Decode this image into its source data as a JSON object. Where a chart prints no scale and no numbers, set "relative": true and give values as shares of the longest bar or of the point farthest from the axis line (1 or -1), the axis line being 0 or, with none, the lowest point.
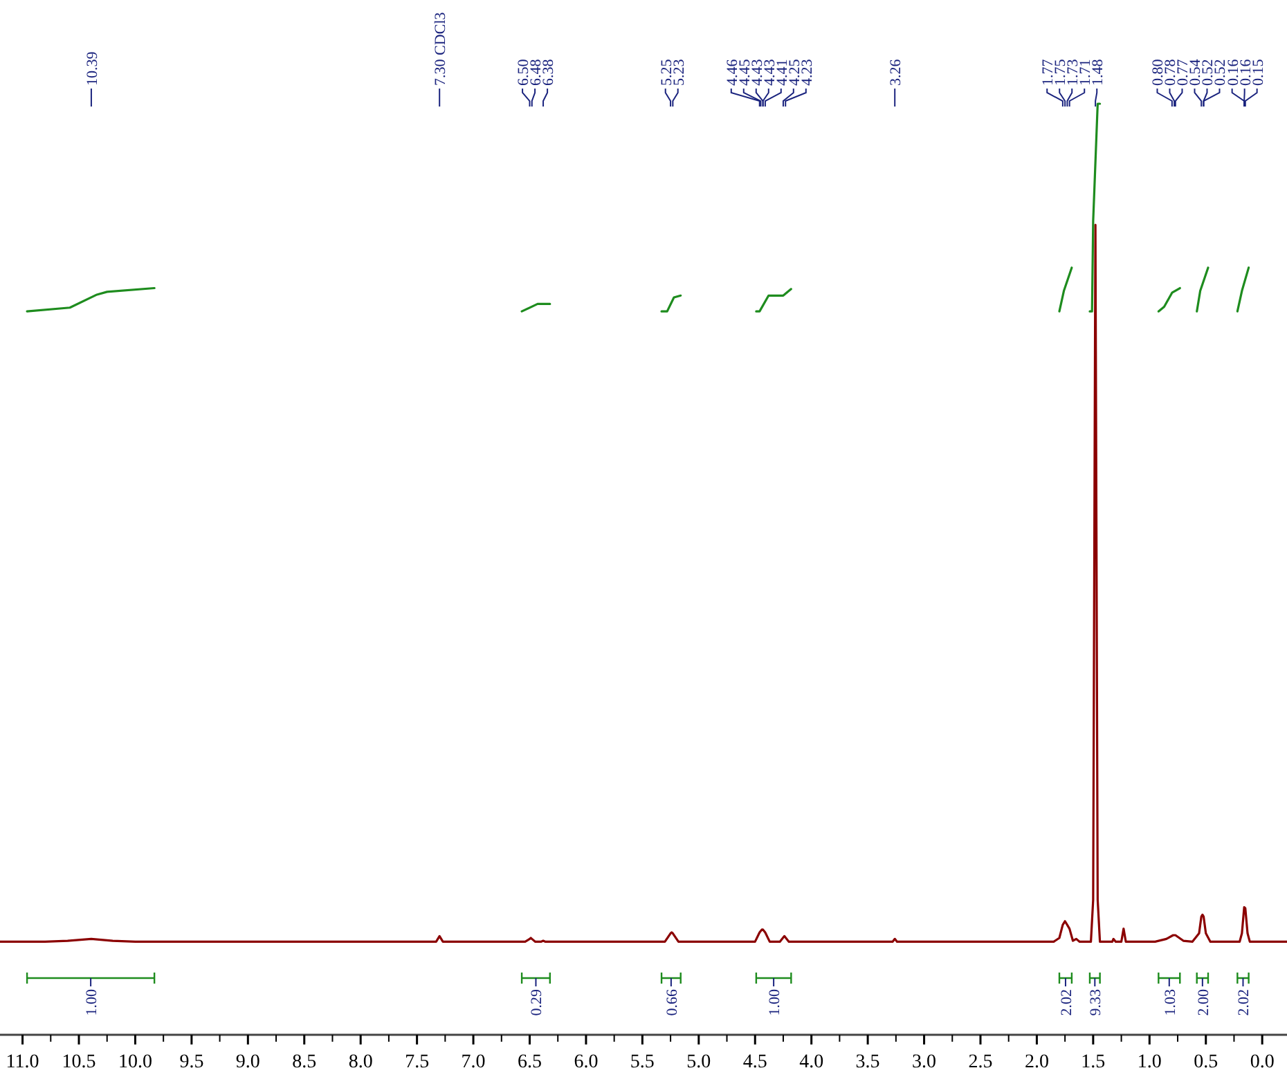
{
  "chart_data": {
    "type": "line",
    "relative": true,
    "xlim": [
      11.2,
      -0.22
    ],
    "xticks": [
      {
        "value": 11,
        "label": "11.0"
      },
      10.5,
      {
        "value": 10,
        "label": "10.0"
      },
      9.5,
      {
        "value": 9,
        "label": "9.0"
      },
      8.5,
      {
        "value": 8,
        "label": "8.0"
      },
      7.5,
      {
        "value": 7,
        "label": "7.0"
      },
      6.5,
      {
        "value": 6,
        "label": "6.0"
      },
      5.5,
      {
        "value": 5,
        "label": "5.0"
      },
      4.5,
      {
        "value": 4,
        "label": "4.0"
      },
      3.5,
      {
        "value": 3,
        "label": "3.0"
      },
      2.5,
      {
        "value": 2,
        "label": "2.0"
      },
      1.5,
      {
        "value": 1,
        "label": "1.0"
      },
      0.5,
      {
        "value": 0,
        "label": "0.0"
      }
    ],
    "series": [
      {
        "color": "#8b0000",
        "x": [
          11.2,
          10.8,
          10.6,
          10.39,
          10.2,
          10.0,
          7.33,
          7.3,
          7.27,
          6.54,
          6.5,
          6.49,
          6.48,
          6.45,
          6.4,
          6.38,
          6.36,
          5.3,
          5.25,
          5.24,
          5.23,
          5.18,
          4.5,
          4.46,
          4.44,
          4.43,
          4.41,
          4.37,
          4.28,
          4.24,
          4.2,
          3.28,
          3.26,
          3.24,
          1.85,
          1.8,
          1.77,
          1.75,
          1.73,
          1.71,
          1.68,
          1.65,
          1.62,
          1.52,
          1.5,
          1.48,
          1.46,
          1.44,
          1.33,
          1.32,
          1.3,
          1.25,
          1.23,
          1.21,
          0.95,
          0.85,
          0.79,
          0.77,
          0.7,
          0.62,
          0.56,
          0.54,
          0.53,
          0.52,
          0.5,
          0.46,
          0.2,
          0.18,
          0.16,
          0.15,
          0.13,
          0.11,
          -0.22
        ],
        "values": [
          0.1,
          0.1,
          0.101,
          0.103,
          0.101,
          0.1,
          0.1,
          0.106,
          0.1,
          0.1,
          0.103,
          0.104,
          0.103,
          0.1,
          0.1,
          0.101,
          0.1,
          0.1,
          0.109,
          0.11,
          0.109,
          0.1,
          0.1,
          0.11,
          0.113,
          0.113,
          0.11,
          0.1,
          0.1,
          0.106,
          0.1,
          0.1,
          0.103,
          0.1,
          0.1,
          0.104,
          0.118,
          0.122,
          0.118,
          0.114,
          0.101,
          0.103,
          0.1,
          0.1,
          0.145,
          0.87,
          0.145,
          0.1,
          0.1,
          0.103,
          0.1,
          0.1,
          0.114,
          0.1,
          0.1,
          0.103,
          0.107,
          0.107,
          0.101,
          0.1,
          0.109,
          0.127,
          0.129,
          0.127,
          0.109,
          0.1,
          0.1,
          0.109,
          0.137,
          0.136,
          0.109,
          0.1,
          0.1
        ]
      },
      {
        "color": "#1e8c1e",
        "x": [
          10.96,
          10.58,
          10.34,
          10.25,
          9.83
        ],
        "values": [
          0.777,
          0.781,
          0.795,
          0.798,
          0.802
        ]
      },
      {
        "color": "#1e8c1e",
        "x": [
          6.57,
          6.43,
          6.32
        ],
        "values": [
          0.777,
          0.785,
          0.785
        ]
      },
      {
        "color": "#1e8c1e",
        "x": [
          5.33,
          5.28,
          5.22,
          5.16
        ],
        "values": [
          0.777,
          0.777,
          0.792,
          0.794
        ]
      },
      {
        "color": "#1e8c1e",
        "x": [
          4.49,
          4.46,
          4.38,
          4.25,
          4.18
        ],
        "values": [
          0.777,
          0.777,
          0.794,
          0.794,
          0.801
        ]
      },
      {
        "color": "#1e8c1e",
        "x": [
          1.8,
          1.76,
          1.69
        ],
        "values": [
          0.777,
          0.799,
          0.824
        ]
      },
      {
        "color": "#1e8c1e",
        "x": [
          1.53,
          1.51,
          1.5,
          1.46,
          1.44
        ],
        "values": [
          0.777,
          0.777,
          0.874,
          1.0,
          1.0
        ]
      },
      {
        "color": "#1e8c1e",
        "x": [
          0.92,
          0.87,
          0.8,
          0.73
        ],
        "values": [
          0.777,
          0.782,
          0.797,
          0.802
        ]
      },
      {
        "color": "#1e8c1e",
        "x": [
          0.58,
          0.55,
          0.48
        ],
        "values": [
          0.777,
          0.799,
          0.824
        ]
      },
      {
        "color": "#1e8c1e",
        "x": [
          0.22,
          0.18,
          0.12
        ],
        "values": [
          0.777,
          0.799,
          0.824
        ]
      }
    ],
    "annotations": [
      {
        "text": "10.39",
        "x": 10.39
      },
      {
        "text": "7.30 CDCl3",
        "x": 7.3
      },
      {
        "text": "6.50",
        "x": 6.5
      },
      {
        "text": "6.48",
        "x": 6.48
      },
      {
        "text": "6.38",
        "x": 6.38
      },
      {
        "text": "5.25",
        "x": 5.25
      },
      {
        "text": "5.23",
        "x": 5.23
      },
      {
        "text": "4.46",
        "x": 4.46
      },
      {
        "text": "4.45",
        "x": 4.45
      },
      {
        "text": "4.43",
        "x": 4.43
      },
      {
        "text": "4.43",
        "x": 4.43
      },
      {
        "text": "4.41",
        "x": 4.41
      },
      {
        "text": "4.25",
        "x": 4.25
      },
      {
        "text": "4.23",
        "x": 4.23
      },
      {
        "text": "3.26",
        "x": 3.26
      },
      {
        "text": "1.77",
        "x": 1.77
      },
      {
        "text": "1.75",
        "x": 1.75
      },
      {
        "text": "1.73",
        "x": 1.73
      },
      {
        "text": "1.71",
        "x": 1.71
      },
      {
        "text": "1.48",
        "x": 1.48
      },
      {
        "text": "0.80",
        "x": 0.8
      },
      {
        "text": "0.78",
        "x": 0.78
      },
      {
        "text": "0.77",
        "x": 0.77
      },
      {
        "text": "0.54",
        "x": 0.54
      },
      {
        "text": "0.52",
        "x": 0.52
      },
      {
        "text": "0.52",
        "x": 0.52
      },
      {
        "text": "0.16",
        "x": 0.16
      },
      {
        "text": "0.16",
        "x": 0.16
      },
      {
        "text": "0.15",
        "x": 0.15
      },
      "1.00",
      "0.29",
      "0.66",
      "1.00",
      "2.02",
      "9.33",
      "1.03",
      "2.00",
      "2.02"
    ]
  }
}
